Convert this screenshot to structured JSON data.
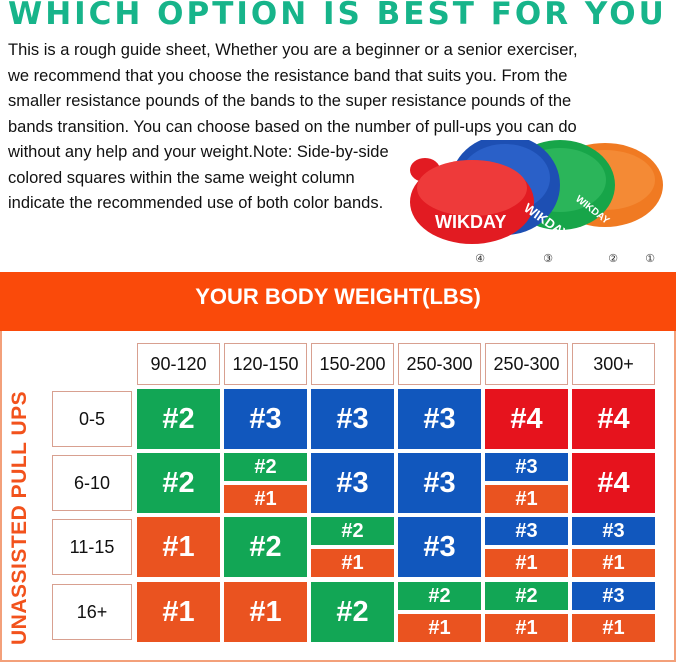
{
  "title": "WHICH OPTION IS BEST FOR YOU ?",
  "description_lines": [
    "This is a rough guide sheet, Whether you are a beginner or a senior exerciser,",
    "we recommend that you choose the resistance band that suits you. From the",
    "smaller resistance pounds of the bands to the super resistance pounds of the",
    "bands transition. You can choose based on the number of pull-ups you can do",
    "without any help and your weight.Note: Side-by-side",
    "colored squares within the same weight column",
    "indicate the recommended use of both color bands."
  ],
  "product_image": {
    "brand": "WIKDAY",
    "labels": [
      "④",
      "③",
      "②",
      "①"
    ]
  },
  "banner": "YOUR BODY WEIGHT(LBS)",
  "row_axis_label": "UNASSISTED PULL UPS",
  "colors": {
    "title": "#17b48a",
    "banner": "#fa4a0a",
    "band_1": "#ea5320",
    "band_2": "#12a655",
    "band_3": "#1157bd",
    "band_4": "#e6131d"
  },
  "band_labels": {
    "1": "#1",
    "2": "#2",
    "3": "#3",
    "4": "#4"
  },
  "columns": [
    "90-120",
    "120-150",
    "150-200",
    "250-300",
    "250-300",
    "300+"
  ],
  "rows": [
    {
      "label": "0-5",
      "cells": [
        [
          "2"
        ],
        [
          "3"
        ],
        [
          "3"
        ],
        [
          "3"
        ],
        [
          "4"
        ],
        [
          "4"
        ]
      ]
    },
    {
      "label": "6-10",
      "cells": [
        [
          "2"
        ],
        [
          "2",
          "1"
        ],
        [
          "3"
        ],
        [
          "3"
        ],
        [
          "3",
          "1"
        ],
        [
          "4"
        ]
      ]
    },
    {
      "label": "11-15",
      "cells": [
        [
          "1"
        ],
        [
          "2"
        ],
        [
          "2",
          "1"
        ],
        [
          "3"
        ],
        [
          "3",
          "1"
        ],
        [
          "3",
          "1"
        ]
      ]
    },
    {
      "label": "16+",
      "cells": [
        [
          "1"
        ],
        [
          "1"
        ],
        [
          "2"
        ],
        [
          "2",
          "1"
        ],
        [
          "2",
          "1"
        ],
        [
          "3",
          "1"
        ]
      ]
    }
  ]
}
